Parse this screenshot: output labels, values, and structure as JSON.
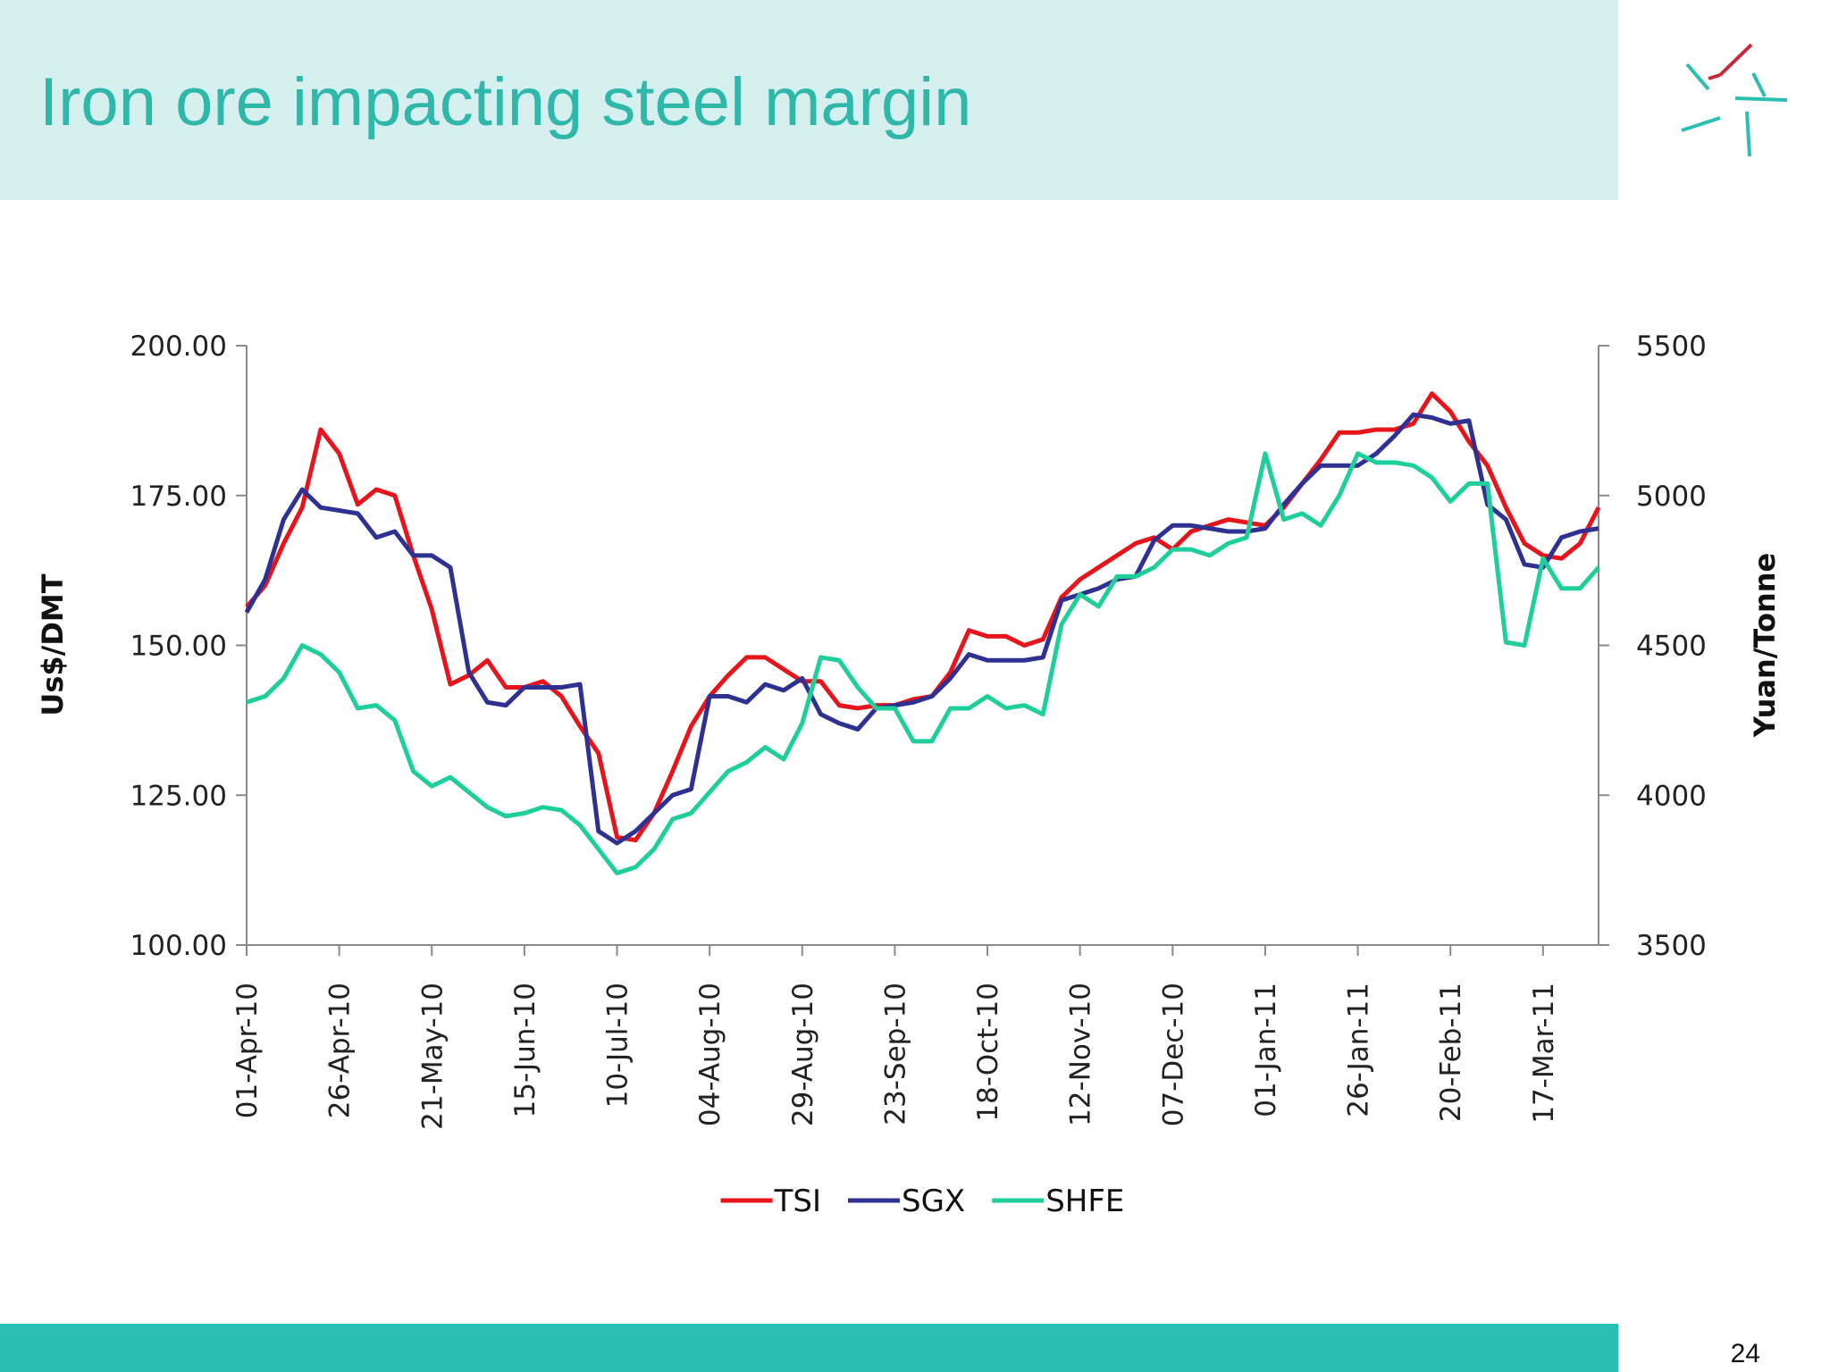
{
  "slide_title": "Iron ore impacting steel margin",
  "page_number": "24",
  "chart_data": {
    "type": "line",
    "y_label": "Us$/DMT",
    "y2_label": "Yuan/Tonne",
    "x": [
      "2010-04-01",
      "2010-04-06",
      "2010-04-11",
      "2010-04-16",
      "2010-04-21",
      "2010-04-26",
      "2010-05-01",
      "2010-05-06",
      "2010-05-11",
      "2010-05-16",
      "2010-05-21",
      "2010-05-26",
      "2010-05-31",
      "2010-06-05",
      "2010-06-10",
      "2010-06-15",
      "2010-06-20",
      "2010-06-25",
      "2010-06-30",
      "2010-07-05",
      "2010-07-10",
      "2010-07-15",
      "2010-07-20",
      "2010-07-25",
      "2010-07-30",
      "2010-08-04",
      "2010-08-09",
      "2010-08-14",
      "2010-08-19",
      "2010-08-24",
      "2010-08-29",
      "2010-09-03",
      "2010-09-08",
      "2010-09-13",
      "2010-09-18",
      "2010-09-23",
      "2010-09-28",
      "2010-10-03",
      "2010-10-08",
      "2010-10-13",
      "2010-10-18",
      "2010-10-23",
      "2010-10-28",
      "2010-11-02",
      "2010-11-07",
      "2010-11-12",
      "2010-11-17",
      "2010-11-22",
      "2010-11-27",
      "2010-12-02",
      "2010-12-07",
      "2010-12-12",
      "2010-12-17",
      "2010-12-22",
      "2010-12-27",
      "2011-01-01",
      "2011-01-06",
      "2011-01-11",
      "2011-01-16",
      "2011-01-21",
      "2011-01-26",
      "2011-01-31",
      "2011-02-05",
      "2011-02-10",
      "2011-02-15",
      "2011-02-20",
      "2011-02-25",
      "2011-03-02",
      "2011-03-07",
      "2011-03-12",
      "2011-03-17",
      "2011-03-22",
      "2011-03-27",
      "2011-04-01"
    ],
    "xlim": [
      "2010-04-01",
      "2011-04-01"
    ],
    "xticks": [
      {
        "value": "2010-04-01",
        "label": "01-Apr-10"
      },
      {
        "value": "2010-04-26",
        "label": "26-Apr-10"
      },
      {
        "value": "2010-05-21",
        "label": "21-May-10"
      },
      {
        "value": "2010-06-15",
        "label": "15-Jun-10"
      },
      {
        "value": "2010-07-10",
        "label": "10-Jul-10"
      },
      {
        "value": "2010-08-04",
        "label": "04-Aug-10"
      },
      {
        "value": "2010-08-29",
        "label": "29-Aug-10"
      },
      {
        "value": "2010-09-23",
        "label": "23-Sep-10"
      },
      {
        "value": "2010-10-18",
        "label": "18-Oct-10"
      },
      {
        "value": "2010-11-12",
        "label": "12-Nov-10"
      },
      {
        "value": "2010-12-07",
        "label": "07-Dec-10"
      },
      {
        "value": "2011-01-01",
        "label": "01-Jan-11"
      },
      {
        "value": "2011-01-26",
        "label": "26-Jan-11"
      },
      {
        "value": "2011-02-20",
        "label": "20-Feb-11"
      },
      {
        "value": "2011-03-17",
        "label": "17-Mar-11"
      }
    ],
    "ylim": [
      100,
      200
    ],
    "yticks": [
      {
        "value": 100,
        "label": "100.00"
      },
      {
        "value": 125,
        "label": "125.00"
      },
      {
        "value": 150,
        "label": "150.00"
      },
      {
        "value": 175,
        "label": "175.00"
      },
      {
        "value": 200,
        "label": "200.00"
      }
    ],
    "y2lim": [
      3500,
      5500
    ],
    "y2ticks": [
      3500,
      4000,
      4500,
      5000,
      5500
    ],
    "legend": "bottom",
    "series": [
      {
        "name": "TSI",
        "color": "#e8141c",
        "values": [
          156.4,
          160,
          167,
          173,
          186,
          182,
          173.5,
          176,
          175,
          165,
          156,
          143.5,
          145,
          147.5,
          143,
          143,
          144,
          141.5,
          136.5,
          132,
          118,
          117.5,
          122,
          129,
          136.5,
          141.5,
          145,
          148,
          148,
          146,
          144,
          144,
          140,
          139.5,
          140,
          140,
          141,
          141.5,
          145.5,
          152.5,
          151.5,
          151.5,
          150,
          151,
          158,
          161,
          163,
          165,
          167,
          168,
          166,
          169,
          170,
          171,
          170.5,
          170,
          173,
          177,
          181,
          185.5,
          185.5,
          186,
          186,
          187,
          192,
          189,
          184,
          180,
          173,
          167,
          165,
          164.5,
          167,
          173
        ]
      },
      {
        "name": "SGX",
        "color": "#2e3192",
        "values": [
          155.5,
          161,
          171,
          176,
          173,
          172.5,
          172,
          168,
          169,
          165,
          165,
          163,
          145.5,
          140.5,
          140,
          143,
          143,
          143,
          143.5,
          119,
          117,
          119,
          122,
          125,
          126,
          141.5,
          141.5,
          140.5,
          143.5,
          142.5,
          144.5,
          138.5,
          137,
          136,
          139.5,
          140,
          140.5,
          141.5,
          144.5,
          148.5,
          147.5,
          147.5,
          147.5,
          148,
          157.5,
          158.5,
          159.5,
          161,
          161.5,
          167.5,
          170,
          170,
          169.5,
          169,
          169,
          169.5,
          173.5,
          177,
          180,
          180,
          180,
          182,
          185,
          188.5,
          188,
          187,
          187.5,
          173.5,
          171,
          163.5,
          163,
          168,
          169,
          169.5
        ]
      },
      {
        "name": "SHFE",
        "color": "#1ecf9a",
        "axis": "y2",
        "values": [
          4310,
          4330,
          4390,
          4500,
          4470,
          4410,
          4290,
          4300,
          4250,
          4080,
          4030,
          4060,
          4010,
          3960,
          3930,
          3940,
          3960,
          3950,
          3900,
          3820,
          3740,
          3760,
          3820,
          3920,
          3940,
          4010,
          4080,
          4110,
          4160,
          4120,
          4240,
          4460,
          4450,
          4360,
          4290,
          4290,
          4180,
          4180,
          4290,
          4290,
          4330,
          4290,
          4300,
          4270,
          4570,
          4670,
          4630,
          4730,
          4730,
          4760,
          4820,
          4820,
          4800,
          4840,
          4860,
          5140,
          4920,
          4940,
          4900,
          5000,
          5140,
          5110,
          5110,
          5100,
          5060,
          4980,
          5040,
          5040,
          4510,
          4500,
          4790,
          4690,
          4690,
          4760
        ]
      }
    ]
  }
}
